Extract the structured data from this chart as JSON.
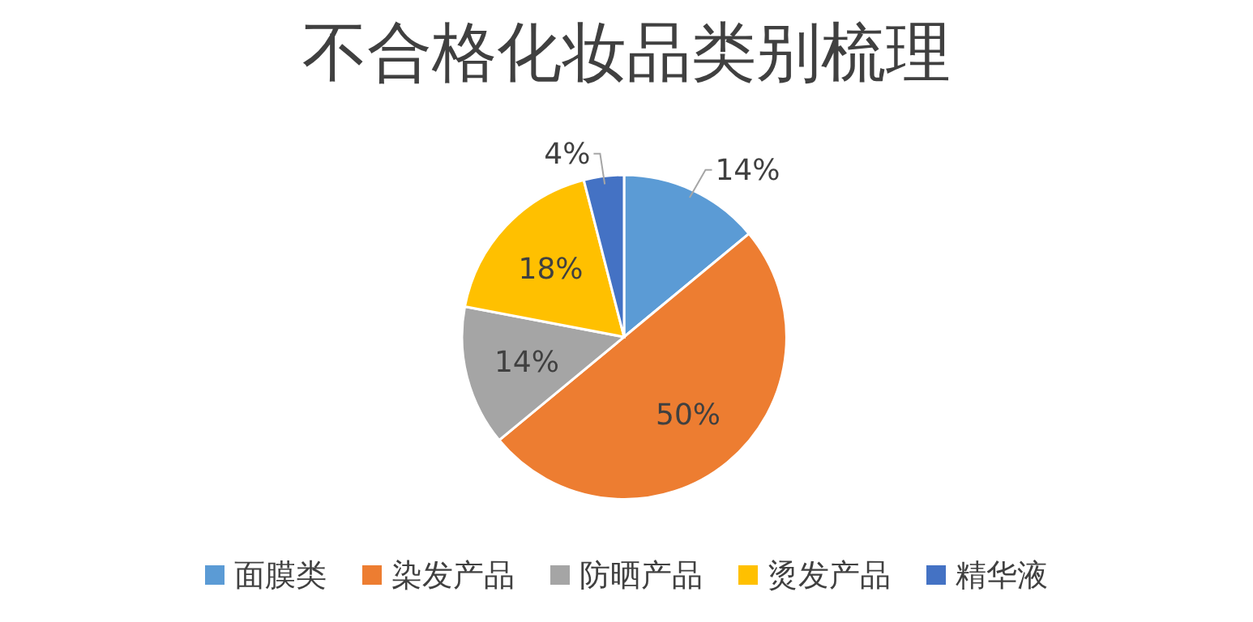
{
  "chart_data": {
    "type": "pie",
    "title": "不合格化妆品类别梳理",
    "categories": [
      "面膜类",
      "染发产品",
      "防晒产品",
      "烫发产品",
      "精华液"
    ],
    "values": [
      14,
      50,
      14,
      18,
      4
    ],
    "colors": [
      "#5b9bd5",
      "#ed7d31",
      "#a5a5a5",
      "#ffc000",
      "#4472c4"
    ],
    "value_labels": [
      "14%",
      "50%",
      "14%",
      "18%",
      "4%"
    ],
    "legend": "bottom"
  }
}
